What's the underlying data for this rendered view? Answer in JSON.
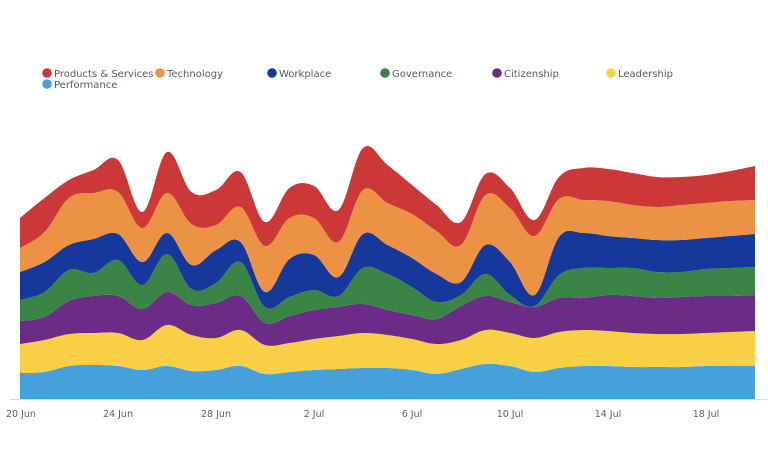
{
  "chart_data": {
    "type": "area",
    "stacked": true,
    "smooth": true,
    "title": "",
    "xlabel": "",
    "ylabel": "",
    "grid": false,
    "legend_position": "top-left",
    "ylim": [
      0,
      130
    ],
    "x": [
      "20 Jun",
      "21 Jun",
      "22 Jun",
      "23 Jun",
      "24 Jun",
      "25 Jun",
      "26 Jun",
      "27 Jun",
      "28 Jun",
      "29 Jun",
      "30 Jun",
      "1 Jul",
      "2 Jul",
      "3 Jul",
      "4 Jul",
      "5 Jul",
      "6 Jul",
      "7 Jul",
      "8 Jul",
      "9 Jul",
      "10 Jul",
      "11 Jul",
      "12 Jul",
      "13 Jul",
      "14 Jul",
      "15 Jul",
      "16 Jul",
      "17 Jul",
      "18 Jul",
      "19 Jul",
      "20 Jul"
    ],
    "x_ticks": [
      "20 Jun",
      "24 Jun",
      "28 Jun",
      "2 Jul",
      "6 Jul",
      "10 Jul",
      "14 Jul",
      "18 Jul"
    ],
    "series": [
      {
        "name": "Performance",
        "color": "#45a0dc",
        "values": [
          13,
          13.5,
          16.5,
          17,
          16.5,
          14.5,
          16.5,
          14,
          14.5,
          16.5,
          12.5,
          13.5,
          14.5,
          15,
          15.5,
          15.5,
          14.5,
          12.5,
          15,
          17.5,
          16.5,
          13.5,
          15.5,
          16.5,
          16.5,
          16,
          16,
          16,
          16.5,
          16.5,
          16.5
        ]
      },
      {
        "name": "Leadership",
        "color": "#f8cf45",
        "values": [
          14.5,
          16,
          16,
          16,
          16.5,
          15,
          20.5,
          18,
          16,
          18,
          14.5,
          14.5,
          15.5,
          16.5,
          17.5,
          16.5,
          15.5,
          15,
          14.5,
          17,
          16.5,
          17,
          18,
          18,
          17.5,
          17,
          16.5,
          16.5,
          16.5,
          17,
          17.5
        ]
      },
      {
        "name": "Citizenship",
        "color": "#6a2c86",
        "values": [
          11.5,
          11.5,
          16.5,
          18.5,
          18.5,
          15.5,
          16.5,
          15,
          17.5,
          17,
          11,
          13.5,
          14.5,
          14.5,
          14.5,
          12.5,
          12,
          12.5,
          17,
          17,
          15.5,
          15.5,
          17,
          16,
          18,
          18.5,
          18,
          18.5,
          18.5,
          18,
          18
        ]
      },
      {
        "name": "Governance",
        "color": "#3a8545",
        "values": [
          10.5,
          12.5,
          15.5,
          11.5,
          18,
          12,
          19,
          8,
          10,
          17,
          8,
          9.5,
          10,
          5.5,
          18,
          18,
          14,
          8.5,
          5.5,
          11,
          3.5,
          0.5,
          11.5,
          15,
          13.5,
          14,
          13,
          12.5,
          13.5,
          14,
          14
        ]
      },
      {
        "name": "Workplace",
        "color": "#16389a",
        "values": [
          14,
          15,
          12.5,
          17,
          13,
          11.5,
          10.5,
          12,
          16.5,
          10,
          7.5,
          19,
          17.5,
          9.5,
          17,
          14.5,
          14.5,
          14,
          6.5,
          14.5,
          16.5,
          5.5,
          19,
          17.5,
          16,
          15,
          16,
          16,
          15.5,
          16,
          16.5
        ]
      },
      {
        "name": "Technology",
        "color": "#ec9245",
        "values": [
          12,
          15,
          23.5,
          23,
          21,
          17,
          20,
          20.5,
          12.5,
          17.5,
          23,
          20.5,
          18.5,
          17.5,
          22,
          21,
          22,
          21.5,
          18.5,
          25,
          27,
          29.5,
          19,
          16.5,
          17.5,
          16.5,
          16.5,
          17.5,
          17.5,
          17.5,
          17
        ]
      },
      {
        "name": "Products & Services",
        "color": "#cc3737",
        "values": [
          15,
          17,
          9,
          11.5,
          16,
          8,
          20.5,
          16,
          17.5,
          17.5,
          12,
          15,
          16,
          16,
          21,
          19,
          14.5,
          13,
          11.5,
          10.5,
          10,
          8,
          11,
          16,
          16,
          16,
          15,
          14,
          14,
          15,
          17
        ]
      }
    ]
  }
}
